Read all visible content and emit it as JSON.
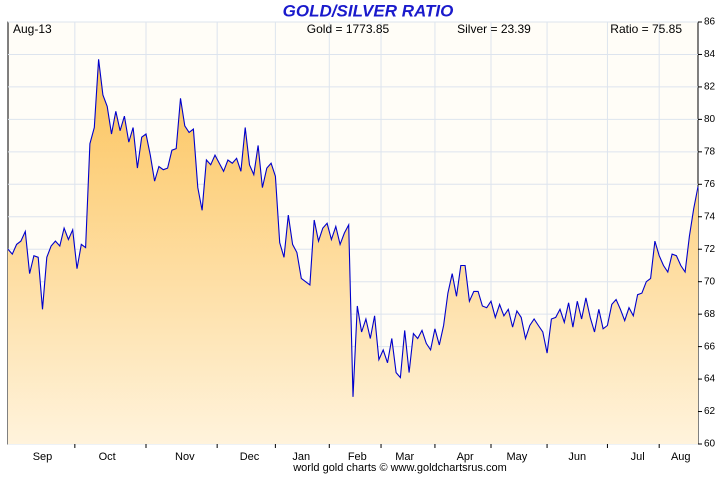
{
  "chart_data": {
    "type": "area",
    "title": "GOLD/SILVER RATIO",
    "header": {
      "date": "Aug-13",
      "gold": "Gold = 1773.85",
      "silver": "Silver = 23.39",
      "ratio": "Ratio = 75.85"
    },
    "footer": "world gold charts © www.goldchartsrus.com",
    "categories": [
      null,
      null,
      null,
      null,
      null,
      null,
      null,
      null,
      "Sep",
      null,
      null,
      null,
      null,
      null,
      null,
      null,
      null,
      null,
      null,
      null,
      null,
      null,
      null,
      "Oct",
      null,
      null,
      null,
      null,
      null,
      null,
      null,
      null,
      null,
      null,
      null,
      null,
      null,
      null,
      null,
      null,
      null,
      "Nov",
      null,
      null,
      null,
      null,
      null,
      null,
      null,
      null,
      null,
      null,
      null,
      null,
      null,
      null,
      "Dec",
      null,
      null,
      null,
      null,
      null,
      null,
      null,
      null,
      null,
      null,
      null,
      "Jan",
      null,
      null,
      null,
      null,
      null,
      null,
      null,
      null,
      null,
      null,
      null,
      null,
      "Feb",
      null,
      null,
      null,
      null,
      null,
      null,
      null,
      null,
      null,
      null,
      "Mar",
      null,
      null,
      null,
      null,
      null,
      null,
      null,
      null,
      null,
      null,
      null,
      null,
      null,
      "Apr",
      null,
      null,
      null,
      null,
      null,
      null,
      null,
      null,
      null,
      null,
      null,
      "May",
      null,
      null,
      null,
      null,
      null,
      null,
      null,
      null,
      null,
      null,
      null,
      null,
      null,
      "Jun",
      null,
      null,
      null,
      null,
      null,
      null,
      null,
      null,
      null,
      null,
      null,
      null,
      null,
      "Jul",
      null,
      null,
      null,
      null,
      null,
      null,
      null,
      null,
      null,
      "Aug",
      null,
      null,
      null,
      null
    ],
    "values": [
      72,
      71.7,
      72.3,
      72.5,
      73.1,
      70.5,
      71.6,
      71.5,
      68.3,
      71.5,
      72.2,
      72.5,
      72.2,
      73.3,
      72.6,
      73.2,
      70.8,
      72.3,
      72.1,
      78.5,
      79.5,
      83.7,
      81.5,
      80.8,
      79.1,
      80.5,
      79.3,
      80.2,
      78.6,
      79.5,
      77,
      78.9,
      79.1,
      77.8,
      76.2,
      77.1,
      76.9,
      77.0,
      78.1,
      78.2,
      81.3,
      79.6,
      79.2,
      79.4,
      75.8,
      74.4,
      77.5,
      77.2,
      77.8,
      77.3,
      76.8,
      77.5,
      77.3,
      77.6,
      76.8,
      79.5,
      77.2,
      76.6,
      78.4,
      75.8,
      77.0,
      77.3,
      76.5,
      72.4,
      71.5,
      74.1,
      72.3,
      71.8,
      70.2,
      70.0,
      69.8,
      73.8,
      72.5,
      73.3,
      73.6,
      72.6,
      73.4,
      72.3,
      73.0,
      73.5,
      62.9,
      68.5,
      66.9,
      67.7,
      66.5,
      67.9,
      65.2,
      65.8,
      65.0,
      66.5,
      64.4,
      64.1,
      67,
      64.4,
      66.8,
      66.5,
      67.0,
      66.2,
      65.8,
      67.1,
      66.1,
      67.3,
      69.3,
      70.5,
      69.1,
      71.0,
      71.0,
      68.8,
      69.4,
      69.4,
      68.5,
      68.4,
      68.8,
      67.8,
      68.6,
      67.9,
      68.3,
      67.2,
      68.2,
      67.8,
      66.5,
      67.3,
      67.7,
      67.3,
      66.9,
      65.6,
      67.7,
      67.8,
      68.3,
      67.5,
      68.7,
      67.2,
      68.8,
      67.7,
      69.0,
      67.8,
      66.9,
      68.3,
      67.1,
      67.3,
      68.6,
      68.9,
      68.3,
      67.6,
      68.4,
      67.9,
      69.2,
      69.3,
      70.0,
      70.2,
      72.5,
      71.6,
      71.0,
      70.6,
      71.7,
      71.6,
      71.0,
      70.6,
      72.8,
      74.5,
      75.85
    ],
    "color": "#0000cc",
    "ylim": [
      60,
      86
    ],
    "yticks": [
      60,
      62,
      64,
      66,
      68,
      70,
      72,
      74,
      76,
      78,
      80,
      82,
      84,
      86
    ],
    "grid": true
  }
}
